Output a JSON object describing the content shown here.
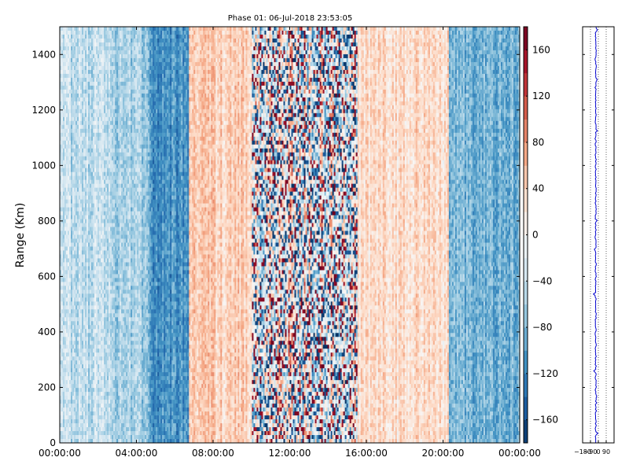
{
  "chart_data": [
    {
      "type": "heatmap",
      "title": "Phase 01: 06-Jul-2018 23:53:05",
      "xlabel": "",
      "ylabel": "Range (Km)",
      "xlim": [
        "00:00:00",
        "24:00:00"
      ],
      "ylim": [
        0,
        1500
      ],
      "x_ticks": [
        "00:00:00",
        "04:00:00",
        "08:00:00",
        "12:00:00",
        "16:00:00",
        "20:00:00",
        "00:00:00"
      ],
      "y_ticks": [
        0,
        200,
        400,
        600,
        800,
        1000,
        1200,
        1400
      ],
      "colormap": "RdBu_r",
      "grid": false,
      "colorbar": {
        "vmin": -180,
        "vmax": 180,
        "ticks": [
          -160,
          -120,
          -80,
          -40,
          0,
          40,
          80,
          120,
          160
        ]
      },
      "time_bands": [
        {
          "start": "00:00",
          "end": "02:50",
          "mean_phase": -45
        },
        {
          "start": "02:50",
          "end": "04:40",
          "mean_phase": -60
        },
        {
          "start": "04:40",
          "end": "06:45",
          "mean_phase": -110
        },
        {
          "start": "06:45",
          "end": "10:00",
          "mean_phase": 40
        },
        {
          "start": "10:00",
          "end": "15:30",
          "mean_phase": 0,
          "noisy": true
        },
        {
          "start": "15:30",
          "end": "20:20",
          "mean_phase": 30
        },
        {
          "start": "20:20",
          "end": "24:00",
          "mean_phase": -85
        }
      ]
    },
    {
      "type": "line",
      "xlim": [
        -180,
        180
      ],
      "x_ticks": [
        "−180",
        "−90",
        "0",
        "90"
      ],
      "ylim": [
        0,
        1500
      ],
      "color": "#0000cc",
      "mean_phase": -30,
      "grid": true
    }
  ]
}
